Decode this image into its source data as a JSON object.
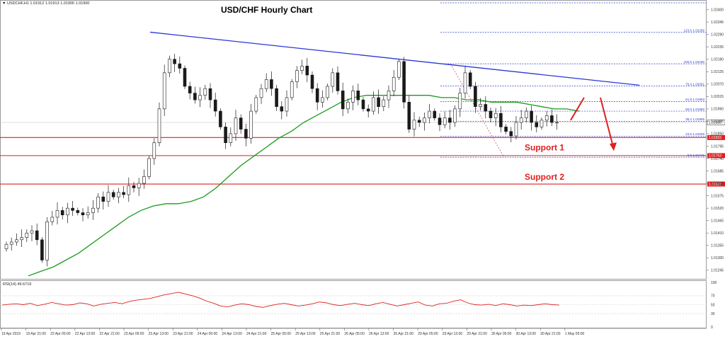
{
  "chart_data": {
    "type": "candlestick",
    "title": "USD/CHF Hourly Chart",
    "symbol_header": "USDCHF,H1  1.01912 1.01913 1.01900 1.01900",
    "current_price": 1.019,
    "price_axis": {
      "min": 1.0121,
      "max": 1.0243,
      "tick_labels": [
        "1.02400",
        "1.02345",
        "1.02290",
        "1.02235",
        "1.02180",
        "1.02125",
        "1.02070",
        "1.02015",
        "1.01960",
        "1.01905",
        "1.01850",
        "1.01795",
        "1.01740",
        "1.01685",
        "1.01630",
        "1.01575",
        "1.01520",
        "1.01465",
        "1.01410",
        "1.01355",
        "1.01300",
        "1.01245"
      ],
      "tick_values": [
        1.024,
        1.02345,
        1.0229,
        1.02235,
        1.0218,
        1.02125,
        1.0207,
        1.02015,
        1.0196,
        1.01905,
        1.0185,
        1.01795,
        1.0174,
        1.01685,
        1.0163,
        1.01575,
        1.0152,
        1.01465,
        1.0141,
        1.01355,
        1.013,
        1.01245
      ]
    },
    "time_axis": {
      "labels": [
        "19 Apr 2019",
        "19 Apr 21:00",
        "22 Apr 05:00",
        "22 Apr 13:00",
        "22 Apr 21:00",
        "23 Apr 05:00",
        "23 Apr 13:00",
        "23 Apr 21:00",
        "24 Apr 05:00",
        "24 Apr 13:00",
        "24 Apr 21:00",
        "25 Apr 05:00",
        "25 Apr 13:00",
        "25 Apr 21:00",
        "26 Apr 05:00",
        "26 Apr 13:00",
        "26 Apr 21:00",
        "29 Apr 05:00",
        "29 Apr 13:00",
        "29 Apr 21:00",
        "30 Apr 05:00",
        "30 Apr 13:00",
        "30 Apr 21:00",
        "1 May 05:00"
      ]
    },
    "closes": [
      1.0136,
      1.0137,
      1.0138,
      1.0139,
      1.0141,
      1.0142,
      1.0138,
      1.0129,
      1.0146,
      1.0148,
      1.0151,
      1.0149,
      1.0152,
      1.0151,
      1.015,
      1.0149,
      1.015,
      1.0152,
      1.0157,
      1.0155,
      1.0159,
      1.0157,
      1.0159,
      1.0158,
      1.0162,
      1.0161,
      1.0163,
      1.0166,
      1.0174,
      1.0181,
      1.0196,
      1.0212,
      1.0218,
      1.0216,
      1.0214,
      1.0206,
      1.0203,
      1.02,
      1.0202,
      1.0205,
      1.02,
      1.0195,
      1.0188,
      1.0181,
      1.0185,
      1.0192,
      1.0187,
      1.0183,
      1.0195,
      1.0201,
      1.0205,
      1.0209,
      1.0205,
      1.0197,
      1.0195,
      1.0201,
      1.0208,
      1.0213,
      1.0215,
      1.0211,
      1.0205,
      1.0199,
      1.0201,
      1.0206,
      1.0212,
      1.0204,
      1.0196,
      1.0199,
      1.0204,
      1.02,
      1.0196,
      1.0195,
      1.0201,
      1.0197,
      1.02,
      1.0204,
      1.021,
      1.0217,
      1.0199,
      1.0187,
      1.0191,
      1.019,
      1.0192,
      1.0195,
      1.0192,
      1.0189,
      1.0192,
      1.019,
      1.0196,
      1.0203,
      1.0212,
      1.0206,
      1.0197,
      1.0198,
      1.0195,
      1.0192,
      1.0194,
      1.0188,
      1.0186,
      1.0184,
      1.019,
      1.0192,
      1.0195,
      1.019,
      1.0188,
      1.0191,
      1.0193,
      1.019,
      1.019
    ],
    "ma_values": [
      1.0122,
      1.0124,
      1.0126,
      1.0129,
      1.0132,
      1.0136,
      1.014,
      1.0144,
      1.0148,
      1.0151,
      1.0153,
      1.0154,
      1.0154,
      1.0155,
      1.0157,
      1.0161,
      1.0166,
      1.0171,
      1.0175,
      1.0179,
      1.0183,
      1.0186,
      1.019,
      1.0193,
      1.0196,
      1.0199,
      1.0201,
      1.0202,
      1.0202,
      1.0202,
      1.0202,
      1.0202,
      1.0202,
      1.0201,
      1.0201,
      1.02,
      1.02,
      1.0199,
      1.0199,
      1.0199,
      1.0198,
      1.0197,
      1.0196,
      1.0196,
      1.0195
    ],
    "trend_line": {
      "start": 1.023,
      "end": 1.02065
    },
    "forecast_arrows": [
      {
        "from": 1.0191,
        "to": 1.0201
      },
      {
        "from": 1.0201,
        "to": 1.0178
      }
    ],
    "horizontal_lines": [
      {
        "label": "Support 1",
        "value": 1.01833,
        "box": "1.01833"
      },
      {
        "value": 1.01753,
        "box": "1.01753"
      },
      {
        "label": "Support 2",
        "value": 1.01627,
        "box": "1.01627"
      }
    ],
    "fibonacci_levels": [
      {
        "label": "123.6 1.02299",
        "value": 1.02299
      },
      {
        "label": "100.0 1.02160",
        "value": 1.0216
      },
      {
        "label": "76.4 1.02061",
        "value": 1.02061
      },
      {
        "label": "61.8 1.01993",
        "value": 1.01993
      },
      {
        "label": "50.0 1.01950",
        "value": 1.0195
      },
      {
        "label": "38.2 1.01905",
        "value": 1.01905
      },
      {
        "label": "23.6 1.01839",
        "value": 1.01839
      },
      {
        "label": "0.0 1.01746",
        "value": 1.01746
      }
    ],
    "rsi": {
      "label": "RSI(14) 49.6719",
      "ylim": [
        0,
        100
      ],
      "tick_labels": [
        "100",
        "70",
        "50",
        "30",
        "0"
      ],
      "tick_values": [
        100,
        70,
        50,
        30,
        0
      ],
      "values": [
        49,
        51,
        52,
        50,
        53,
        48,
        51,
        55,
        52,
        49,
        50,
        54,
        52,
        47,
        51,
        53,
        55,
        52,
        57,
        60,
        62,
        64,
        68,
        72,
        75,
        78,
        74,
        70,
        65,
        58,
        53,
        47,
        45,
        49,
        52,
        50,
        46,
        44,
        48,
        51,
        53,
        50,
        47,
        49,
        52,
        56,
        54,
        50,
        48,
        51,
        53,
        50,
        48,
        52,
        55,
        51,
        47,
        50,
        53,
        56,
        49,
        47,
        52,
        53,
        58,
        61,
        54,
        50,
        49,
        51,
        48,
        52,
        50,
        47,
        49,
        48,
        50,
        52,
        50,
        49
      ]
    },
    "colors": {
      "candle": "#1a1a1a",
      "ma": "#1a9b1a",
      "trend": "#2a36d8",
      "support": "#e02020",
      "fib": "#3040d0",
      "rsi": "#e02020",
      "arrows": "#e02020"
    }
  }
}
